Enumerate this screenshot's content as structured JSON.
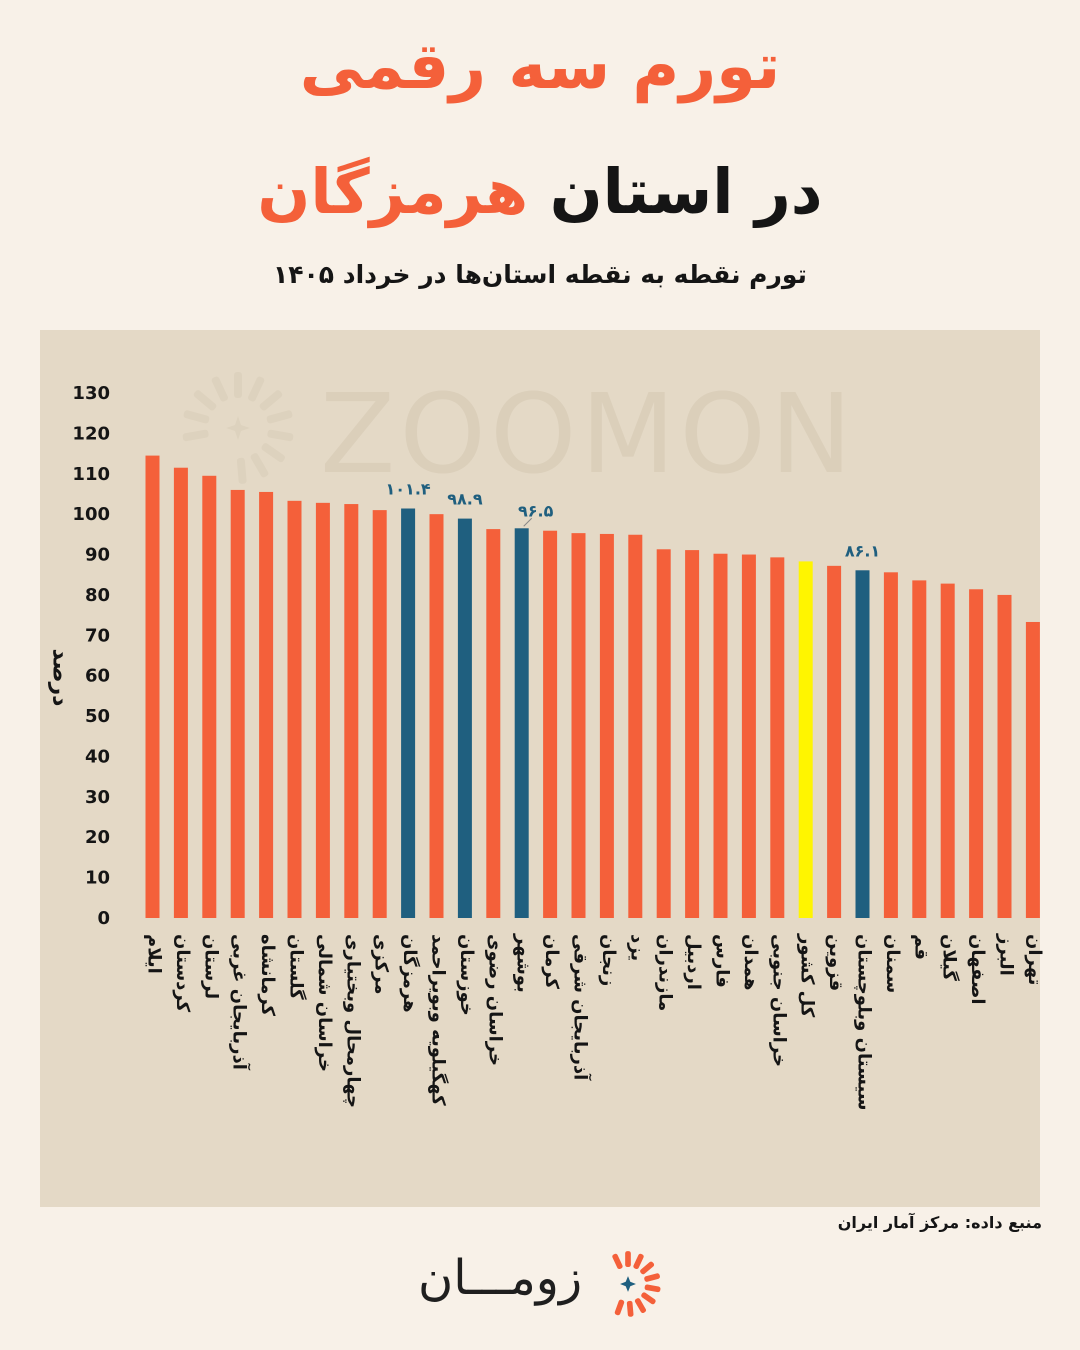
{
  "header": {
    "title_line1": "تورم سه رقمی",
    "title_line2_prefix": "در استان",
    "title_line2_highlight": "هرمزگان",
    "subtitle": "تورم نقطه به نقطه استان‌ها در خرداد ۱۴۰۵"
  },
  "watermark_text": "ZOOMON",
  "source": "منبع داده: مرکز آمار ایران",
  "logo": {
    "text": "زومـــان"
  },
  "colors": {
    "background": "#f8f1e8",
    "plot_background": "#e4d9c6",
    "bar_default": "#f4603a",
    "bar_highlight": "#1f5f7f",
    "bar_country": "#fff500",
    "title_accent": "#f4603a"
  },
  "chart_data": {
    "type": "bar",
    "title": "تورم نقطه به نقطه استان‌ها در خرداد ۱۴۰۵",
    "ylabel": "درصد",
    "xlabel": "",
    "ylim": [
      0,
      130
    ],
    "yticks": [
      {
        "value": 0,
        "label": "0"
      },
      {
        "value": 10,
        "label": "10"
      },
      {
        "value": 20,
        "label": "20"
      },
      {
        "value": 30,
        "label": "30"
      },
      {
        "value": 40,
        "label": "40"
      },
      {
        "value": 50,
        "label": "50"
      },
      {
        "value": 60,
        "label": "60"
      },
      {
        "value": 70,
        "label": "70"
      },
      {
        "value": 80,
        "label": "80"
      },
      {
        "value": 90,
        "label": "90"
      },
      {
        "value": 100,
        "label": "100"
      },
      {
        "value": 110,
        "label": "110"
      },
      {
        "value": 120,
        "label": "120"
      },
      {
        "value": 130,
        "label": "130"
      }
    ],
    "grid": false,
    "categories": [
      "ایلام",
      "کردستان",
      "لرستان",
      "آذربایجان غربی",
      "کرمانشاه",
      "گلستان",
      "خراسان شمالی",
      "چهارمحال وبختیاری",
      "مرکزی",
      "هرمزگان",
      "کهگیلویه وبویراحمد",
      "خوزستان",
      "خراسان رضوی",
      "بوشهر",
      "کرمان",
      "آذربایجان شرقی",
      "زنجان",
      "یزد",
      "مازندران",
      "اردبیل",
      "فارس",
      "همدان",
      "خراسان جنوبی",
      "کل کشور",
      "قزوین",
      "سیستان وبلوچستان",
      "سمنان",
      "قم",
      "گیلان",
      "اصفهان",
      "البرز",
      "تهران"
    ],
    "values": [
      114.5,
      111.5,
      109.5,
      106.0,
      105.5,
      103.3,
      102.8,
      102.5,
      101.0,
      101.4,
      100.0,
      98.9,
      96.3,
      96.5,
      95.9,
      95.3,
      95.1,
      94.9,
      91.3,
      91.1,
      90.2,
      90.0,
      89.3,
      88.3,
      87.2,
      86.1,
      85.6,
      83.6,
      82.8,
      81.4,
      80.0,
      73.3
    ],
    "highlighted": [
      9,
      11,
      13,
      25
    ],
    "country_total_index": 23,
    "data_labels": [
      {
        "index": 9,
        "label": "۱۰۱.۴"
      },
      {
        "index": 11,
        "label": "۹۸.۹"
      },
      {
        "index": 13,
        "label": "۹۶.۵"
      },
      {
        "index": 25,
        "label": "۸۶.۱"
      }
    ]
  }
}
